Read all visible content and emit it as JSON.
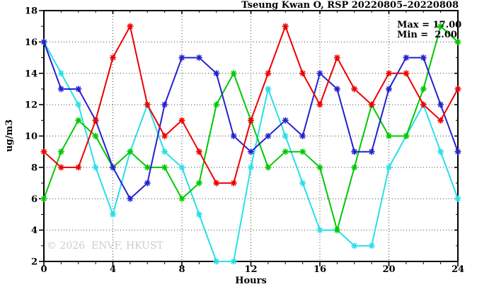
{
  "chart": {
    "title": "Tseung Kwan O, RSP 20220805–20220808",
    "max_label": "Max = 17.00",
    "min_label": "Min =  2.00",
    "xlabel": "Hours",
    "ylabel": "ug/m3",
    "watermark": "© 2026  ENVF, HKUST"
  },
  "chart_data": {
    "type": "line",
    "title": "Tseung Kwan O, RSP 20220805–20220808",
    "xlabel": "Hours",
    "ylabel": "ug/m3",
    "xlim": [
      0,
      24
    ],
    "ylim": [
      2,
      18
    ],
    "x_ticks": [
      0,
      4,
      8,
      12,
      16,
      20,
      24
    ],
    "y_ticks": [
      2,
      4,
      6,
      8,
      10,
      12,
      14,
      16,
      18
    ],
    "grid_x": [
      4,
      8,
      12,
      16,
      20
    ],
    "grid_y": [
      4,
      6,
      8,
      10,
      12,
      14,
      16
    ],
    "grid_on": true,
    "legend": "none",
    "annotations": {
      "max": 17.0,
      "min": 2.0
    },
    "x": [
      0,
      1,
      2,
      3,
      4,
      5,
      6,
      7,
      8,
      9,
      10,
      11,
      12,
      13,
      14,
      15,
      16,
      17,
      18,
      19,
      20,
      21,
      22,
      23,
      24
    ],
    "series": [
      {
        "name": "cyan-series",
        "color": "#29dee8",
        "values": [
          16,
          14,
          12,
          8,
          5,
          9,
          12,
          9,
          8,
          5,
          2,
          2,
          8,
          13,
          10,
          7,
          4,
          4,
          3,
          3,
          8,
          10,
          12,
          9,
          6
        ]
      },
      {
        "name": "green-series",
        "color": "#00c800",
        "values": [
          6,
          9,
          11,
          10,
          8,
          9,
          8,
          8,
          6,
          7,
          12,
          14,
          11,
          8,
          9,
          9,
          8,
          4,
          8,
          12,
          10,
          10,
          13,
          17,
          16
        ]
      },
      {
        "name": "blue-series",
        "color": "#2222cf",
        "values": [
          16,
          13,
          13,
          11,
          8,
          6,
          7,
          12,
          15,
          15,
          14,
          10,
          9,
          10,
          11,
          10,
          14,
          13,
          9,
          9,
          13,
          15,
          15,
          12,
          9
        ]
      },
      {
        "name": "red-series",
        "color": "#ec0000",
        "values": [
          9,
          8,
          8,
          11,
          15,
          17,
          12,
          10,
          11,
          9,
          7,
          7,
          11,
          14,
          17,
          14,
          12,
          15,
          13,
          12,
          14,
          14,
          12,
          11,
          13
        ]
      }
    ]
  }
}
